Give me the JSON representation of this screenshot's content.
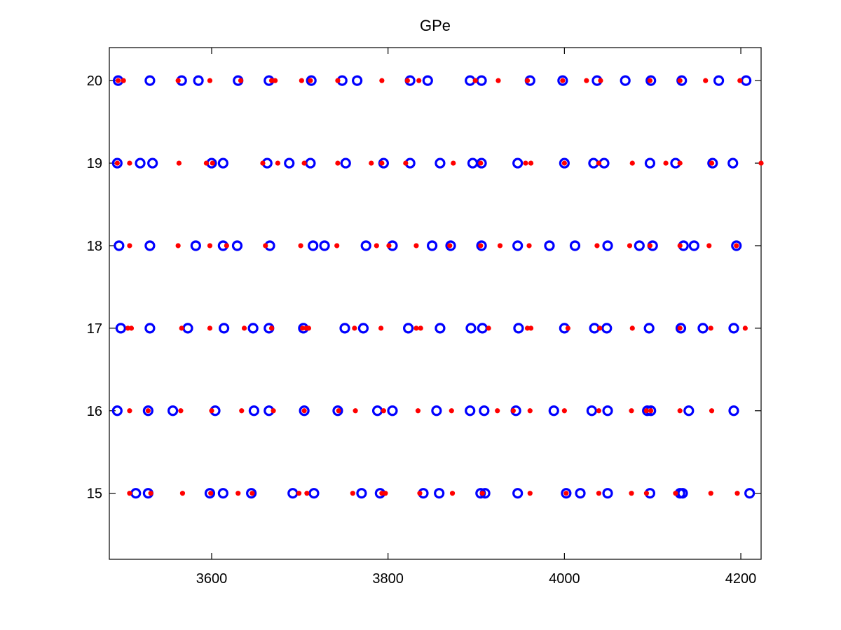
{
  "chart_data": {
    "type": "scatter",
    "title": "GPe",
    "xlabel": "",
    "ylabel": "",
    "xlim": [
      3484,
      4223
    ],
    "ylim": [
      14.2,
      20.4
    ],
    "xticks": [
      3600,
      3800,
      4000,
      4200
    ],
    "yticks": [
      15,
      16,
      17,
      18,
      19,
      20
    ],
    "grid": false,
    "legend": "none",
    "colors": {
      "circles": "#0000ff",
      "dots": "#ff0000",
      "axes": "#000000",
      "background": "#ffffff"
    },
    "series": [
      {
        "marker": "open-circle",
        "color": "#0000ff",
        "rows": [
          {
            "y": 20,
            "x": [
              3494,
              3530,
              3566,
              3585,
              3630,
              3665,
              3713,
              3748,
              3765,
              3825,
              3845,
              3893,
              3906,
              3961,
              3998,
              4037,
              4069,
              4098,
              4133,
              4175,
              4206
            ]
          },
          {
            "y": 19,
            "x": [
              3493,
              3519,
              3533,
              3600,
              3613,
              3663,
              3688,
              3712,
              3752,
              3795,
              3825,
              3859,
              3896,
              3906,
              3947,
              4000,
              4033,
              4045,
              4097,
              4126,
              4168,
              4191
            ]
          },
          {
            "y": 18,
            "x": [
              3495,
              3530,
              3582,
              3613,
              3629,
              3666,
              3715,
              3728,
              3775,
              3805,
              3850,
              3871,
              3906,
              3947,
              3983,
              4012,
              4049,
              4085,
              4100,
              4135,
              4147,
              4195
            ]
          },
          {
            "y": 17,
            "x": [
              3497,
              3530,
              3573,
              3614,
              3647,
              3665,
              3704,
              3751,
              3772,
              3823,
              3859,
              3894,
              3907,
              3948,
              4000,
              4034,
              4048,
              4096,
              4132,
              4157,
              4192
            ]
          },
          {
            "y": 16,
            "x": [
              3493,
              3528,
              3556,
              3604,
              3648,
              3665,
              3705,
              3743,
              3788,
              3805,
              3855,
              3893,
              3909,
              3945,
              3988,
              4031,
              4049,
              4094,
              4098,
              4141,
              4192
            ]
          },
          {
            "y": 15,
            "x": [
              3514,
              3528,
              3598,
              3613,
              3645,
              3692,
              3716,
              3770,
              3791,
              3840,
              3858,
              3905,
              3910,
              3947,
              4002,
              4018,
              4049,
              4097,
              4131,
              4134,
              4210
            ]
          }
        ]
      },
      {
        "marker": "dot",
        "color": "#ff0000",
        "rows": [
          {
            "y": 20,
            "x": [
              3494,
              3500,
              3562,
              3598,
              3633,
              3668,
              3672,
              3702,
              3712,
              3743,
              3793,
              3822,
              3835,
              3899,
              3925,
              3958,
              3998,
              4025,
              4041,
              4097,
              4131,
              4160,
              4199
            ]
          },
          {
            "y": 19,
            "x": [
              3493,
              3507,
              3563,
              3594,
              3601,
              3658,
              3675,
              3705,
              3743,
              3781,
              3793,
              3820,
              3874,
              3905,
              3956,
              3962,
              4000,
              4039,
              4077,
              4115,
              4131,
              4167,
              4223
            ]
          },
          {
            "y": 18,
            "x": [
              3507,
              3562,
              3598,
              3617,
              3661,
              3701,
              3742,
              3787,
              3801,
              3832,
              3870,
              3905,
              3927,
              3960,
              4037,
              4074,
              4097,
              4131,
              4164,
              4195
            ]
          },
          {
            "y": 17,
            "x": [
              3505,
              3509,
              3566,
              3598,
              3637,
              3668,
              3703,
              3707,
              3710,
              3762,
              3792,
              3832,
              3837,
              3914,
              3958,
              3962,
              4004,
              4040,
              4077,
              4131,
              4166,
              4205
            ]
          },
          {
            "y": 16,
            "x": [
              3507,
              3528,
              3565,
              3600,
              3634,
              3670,
              3705,
              3744,
              3763,
              3795,
              3834,
              3872,
              3924,
              3942,
              3961,
              4000,
              4039,
              4076,
              4093,
              4098,
              4131,
              4167
            ]
          },
          {
            "y": 15,
            "x": [
              3507,
              3531,
              3567,
              3599,
              3630,
              3646,
              3699,
              3708,
              3760,
              3793,
              3797,
              3836,
              3873,
              3907,
              3961,
              4002,
              4039,
              4076,
              4093,
              4126,
              4166,
              4196
            ]
          }
        ]
      }
    ]
  }
}
